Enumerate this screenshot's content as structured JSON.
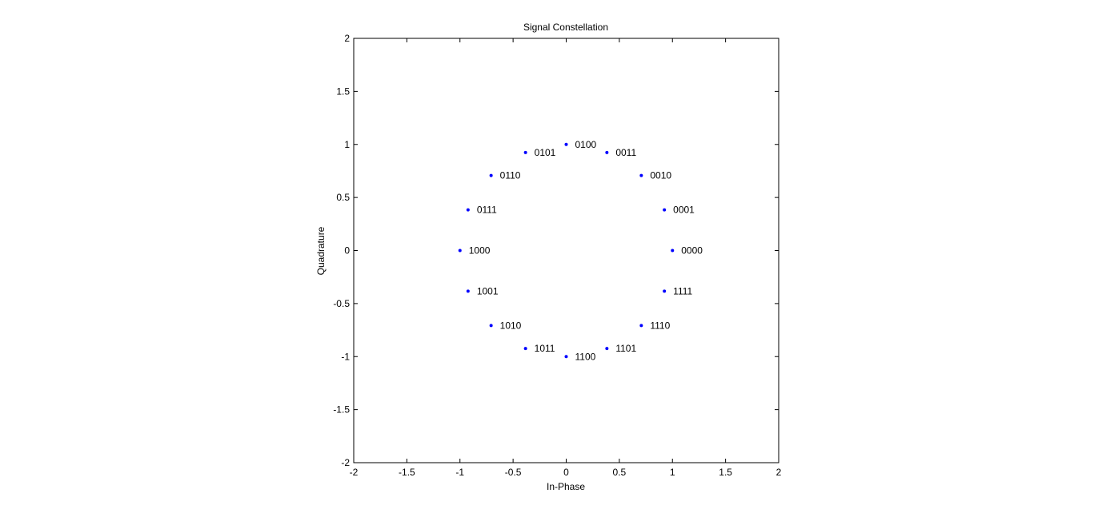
{
  "chart_data": {
    "type": "scatter",
    "title": "Signal Constellation",
    "xlabel": "In-Phase",
    "ylabel": "Quadrature",
    "xlim": [
      -2,
      2
    ],
    "ylim": [
      -2,
      2
    ],
    "grid": false,
    "x_ticks": [
      -2,
      -1.5,
      -1,
      -0.5,
      0,
      0.5,
      1,
      1.5,
      2
    ],
    "y_ticks": [
      -2,
      -1.5,
      -1,
      -0.5,
      0,
      0.5,
      1,
      1.5,
      2
    ],
    "x_tick_labels": [
      "-2",
      "-1.5",
      "-1",
      "-0.5",
      "0",
      "0.5",
      "1",
      "1.5",
      "2"
    ],
    "y_tick_labels": [
      "-2",
      "-1.5",
      "-1",
      "-0.5",
      "0",
      "0.5",
      "1",
      "1.5",
      "2"
    ],
    "marker_color": "#0000ff",
    "points": [
      {
        "x": 1.0,
        "y": 0.0,
        "label": "0000"
      },
      {
        "x": 0.924,
        "y": 0.383,
        "label": "0001"
      },
      {
        "x": 0.707,
        "y": 0.707,
        "label": "0010"
      },
      {
        "x": 0.383,
        "y": 0.924,
        "label": "0011"
      },
      {
        "x": 0.0,
        "y": 1.0,
        "label": "0100"
      },
      {
        "x": -0.383,
        "y": 0.924,
        "label": "0101"
      },
      {
        "x": -0.707,
        "y": 0.707,
        "label": "0110"
      },
      {
        "x": -0.924,
        "y": 0.383,
        "label": "0111"
      },
      {
        "x": -1.0,
        "y": 0.0,
        "label": "1000"
      },
      {
        "x": -0.924,
        "y": -0.383,
        "label": "1001"
      },
      {
        "x": -0.707,
        "y": -0.707,
        "label": "1010"
      },
      {
        "x": -0.383,
        "y": -0.924,
        "label": "1011"
      },
      {
        "x": 0.0,
        "y": -1.0,
        "label": "1100"
      },
      {
        "x": 0.383,
        "y": -0.924,
        "label": "1101"
      },
      {
        "x": 0.707,
        "y": -0.707,
        "label": "1110"
      },
      {
        "x": 0.924,
        "y": -0.383,
        "label": "1111"
      }
    ]
  }
}
